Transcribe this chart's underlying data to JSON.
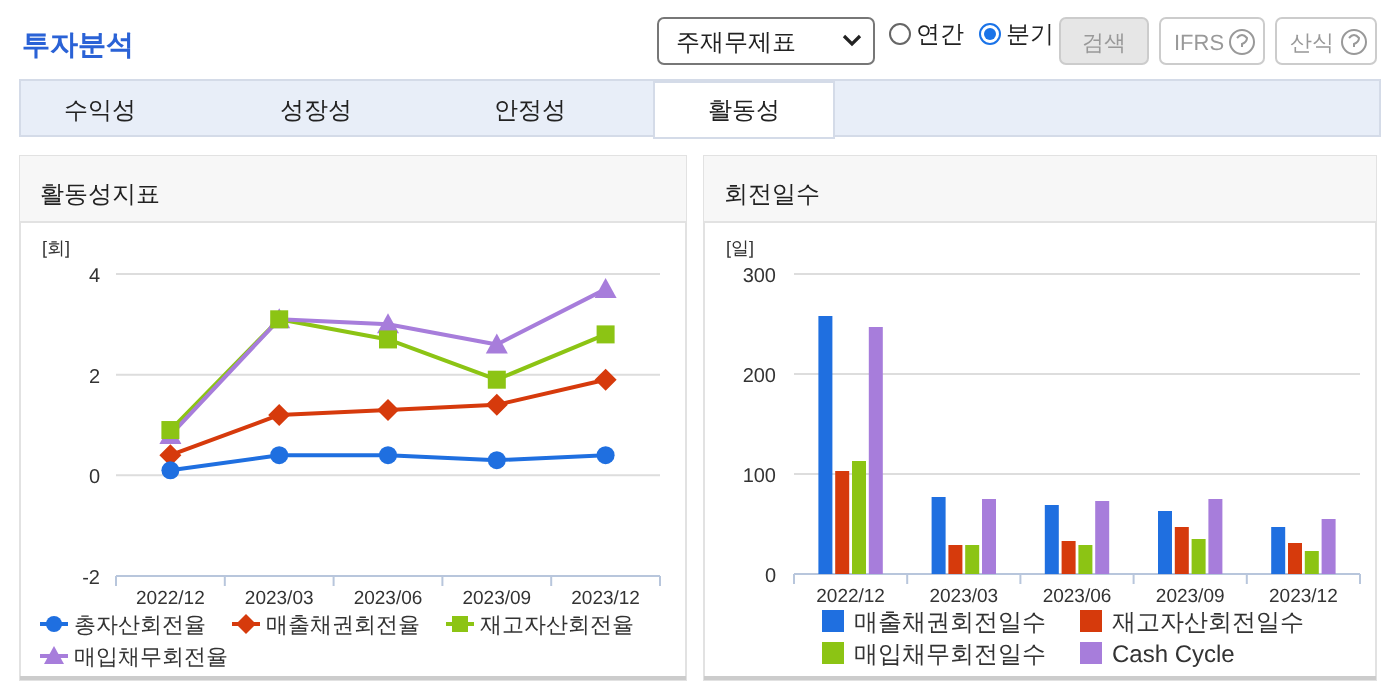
{
  "chart_data": [
    {
      "type": "other",
      "title": "투자분석",
      "annotations": [
        "주재무제표",
        "연간",
        "분기",
        "검색",
        "IFRS",
        "산식",
        "수익성",
        "성장성",
        "안정성",
        "활동성"
      ]
    },
    {
      "type": "line",
      "title": "활동성지표",
      "ylabel": "[회]",
      "categories": [
        "2022/12",
        "2023/03",
        "2023/06",
        "2023/09",
        "2023/12"
      ],
      "ylim": [
        -2,
        4
      ],
      "yticks": [
        -2,
        0,
        2,
        4
      ],
      "grid": "y",
      "legend": "bottom",
      "series": [
        {
          "name": "총자산회전율",
          "color": "#1f6fe0",
          "marker": "circle",
          "values": [
            0.1,
            0.4,
            0.4,
            0.3,
            0.4
          ]
        },
        {
          "name": "매출채권회전율",
          "color": "#d63a0c",
          "marker": "diamond",
          "values": [
            0.4,
            1.2,
            1.3,
            1.4,
            1.9
          ]
        },
        {
          "name": "재고자산회전율",
          "color": "#8cc414",
          "marker": "square",
          "values": [
            0.9,
            3.1,
            2.7,
            1.9,
            2.8
          ]
        },
        {
          "name": "매입채무회전율",
          "color": "#a77ddb",
          "marker": "triangle",
          "values": [
            0.8,
            3.1,
            3.0,
            2.6,
            3.7
          ]
        }
      ]
    },
    {
      "type": "bar",
      "title": "회전일수",
      "ylabel": "[일]",
      "categories": [
        "2022/12",
        "2023/03",
        "2023/06",
        "2023/09",
        "2023/12"
      ],
      "ylim": [
        0,
        300
      ],
      "yticks": [
        0,
        100,
        200,
        300
      ],
      "grid": "y",
      "legend": "bottom",
      "series": [
        {
          "name": "매출채권회전일수",
          "color": "#1f6fe0",
          "values": [
            258,
            77,
            69,
            63,
            47
          ]
        },
        {
          "name": "재고자산회전일수",
          "color": "#d63a0c",
          "values": [
            103,
            29,
            33,
            47,
            31
          ]
        },
        {
          "name": "매입채무회전일수",
          "color": "#8cc414",
          "values": [
            113,
            29,
            29,
            35,
            23
          ]
        },
        {
          "name": "Cash Cycle",
          "color": "#a77ddb",
          "values": [
            247,
            75,
            73,
            75,
            55
          ]
        }
      ]
    }
  ]
}
